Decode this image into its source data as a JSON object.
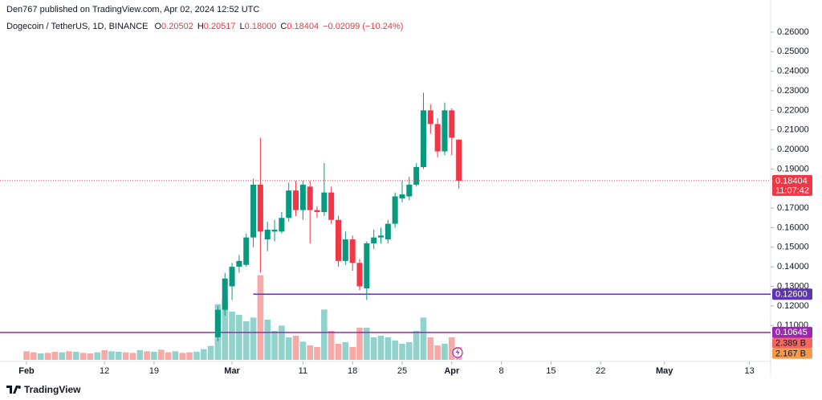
{
  "header": {
    "published": "Den767 published on TradingView.com, Apr 02, 2024 12:52 UTC"
  },
  "footer": {
    "brand": "TradingView"
  },
  "chart_data": {
    "type": "candlestick",
    "title": "Dogecoin / TetherUS, 1D, BINANCE",
    "ohlc_legend": [
      {
        "key": "O",
        "value": "0.20502"
      },
      {
        "key": "H",
        "value": "0.20517"
      },
      {
        "key": "L",
        "value": "0.18000"
      },
      {
        "key": "C",
        "value": "0.18404"
      }
    ],
    "change": "−0.02099 (−10.24%)",
    "up_color": "#089981",
    "down_color": "#f23645",
    "x": [
      "Feb 28",
      "Feb 29",
      "Mar 1",
      "Mar 2",
      "Mar 3",
      "Mar 4",
      "Mar 5",
      "Mar 6",
      "Mar 7",
      "Mar 8",
      "Mar 9",
      "Mar 10",
      "Mar 11",
      "Mar 12",
      "Mar 13",
      "Mar 14",
      "Mar 15",
      "Mar 16",
      "Mar 17",
      "Mar 18",
      "Mar 19",
      "Mar 20",
      "Mar 21",
      "Mar 22",
      "Mar 23",
      "Mar 24",
      "Mar 25",
      "Mar 26",
      "Mar 27",
      "Mar 28",
      "Mar 29",
      "Mar 30",
      "Mar 31",
      "Apr 1",
      "Apr 2"
    ],
    "open": [
      0.104,
      0.118,
      0.13,
      0.14,
      0.141,
      0.155,
      0.182,
      0.154,
      0.158,
      0.158,
      0.165,
      0.179,
      0.169,
      0.181,
      0.169,
      0.168,
      0.178,
      0.164,
      0.143,
      0.154,
      0.142,
      0.129,
      0.152,
      0.155,
      0.154,
      0.162,
      0.175,
      0.176,
      0.182,
      0.191,
      0.22,
      0.213,
      0.199,
      0.22,
      0.20502
    ],
    "high": [
      0.12,
      0.137,
      0.142,
      0.146,
      0.157,
      0.185,
      0.206,
      0.163,
      0.164,
      0.168,
      0.183,
      0.184,
      0.184,
      0.184,
      0.171,
      0.193,
      0.181,
      0.166,
      0.158,
      0.156,
      0.144,
      0.153,
      0.159,
      0.16,
      0.164,
      0.178,
      0.184,
      0.186,
      0.193,
      0.229,
      0.223,
      0.216,
      0.224,
      0.221,
      0.20517
    ],
    "low": [
      0.102,
      0.115,
      0.123,
      0.137,
      0.14,
      0.15,
      0.137,
      0.148,
      0.153,
      0.157,
      0.163,
      0.166,
      0.164,
      0.152,
      0.165,
      0.166,
      0.162,
      0.14,
      0.141,
      0.138,
      0.128,
      0.123,
      0.149,
      0.152,
      0.152,
      0.16,
      0.173,
      0.174,
      0.181,
      0.19,
      0.208,
      0.196,
      0.197,
      0.197,
      0.18
    ],
    "close": [
      0.118,
      0.134,
      0.14,
      0.143,
      0.155,
      0.182,
      0.158,
      0.159,
      0.159,
      0.165,
      0.179,
      0.169,
      0.182,
      0.169,
      0.168,
      0.178,
      0.164,
      0.143,
      0.154,
      0.142,
      0.13,
      0.152,
      0.155,
      0.156,
      0.162,
      0.176,
      0.177,
      0.182,
      0.191,
      0.22,
      0.213,
      0.199,
      0.22,
      0.206,
      0.18404
    ],
    "ylim": [
      0.0916,
      0.2641
    ],
    "yticks": [
      {
        "value": 0.11,
        "label": "0.11000"
      },
      {
        "value": 0.12,
        "label": "0.12000"
      },
      {
        "value": 0.13,
        "label": "0.13000"
      },
      {
        "value": 0.14,
        "label": "0.14000"
      },
      {
        "value": 0.15,
        "label": "0.15000"
      },
      {
        "value": 0.16,
        "label": "0.16000"
      },
      {
        "value": 0.17,
        "label": "0.17000"
      },
      {
        "value": 0.19,
        "label": "0.19000"
      },
      {
        "value": 0.2,
        "label": "0.20000"
      },
      {
        "value": 0.21,
        "label": "0.21000"
      },
      {
        "value": 0.22,
        "label": "0.22000"
      },
      {
        "value": 0.23,
        "label": "0.23000"
      },
      {
        "value": 0.24,
        "label": "0.24000"
      },
      {
        "value": 0.25,
        "label": "0.25000"
      },
      {
        "value": 0.26,
        "label": "0.26000"
      }
    ],
    "xticks": [
      {
        "value": "Feb 1",
        "label": "Feb"
      },
      {
        "value": "Feb 12",
        "label": "12"
      },
      {
        "value": "Feb 19",
        "label": "19"
      },
      {
        "value": "Mar 1",
        "label": "Mar"
      },
      {
        "value": "Mar 11",
        "label": "11"
      },
      {
        "value": "Mar 18",
        "label": "18"
      },
      {
        "value": "Mar 25",
        "label": "25"
      },
      {
        "value": "Apr 1",
        "label": "Apr"
      },
      {
        "value": "Apr 8",
        "label": "8"
      },
      {
        "value": "Apr 15",
        "label": "15"
      },
      {
        "value": "Apr 22",
        "label": "22"
      },
      {
        "value": "May 1",
        "label": "May"
      },
      {
        "value": "May 13",
        "label": "13"
      }
    ],
    "grid": false,
    "last_price": {
      "value": 0.18404,
      "label": "0.18404",
      "countdown": "11:07:42",
      "color": "#f23645"
    },
    "price_lines": [
      {
        "value": 0.126,
        "label": "0.12600",
        "start": "Mar 4",
        "color": "#5e35b1"
      },
      {
        "value": 0.10645,
        "label": "0.10645",
        "color": "#9c27b0"
      }
    ],
    "volume": {
      "x": [
        "Feb 1",
        "Feb 2",
        "Feb 3",
        "Feb 4",
        "Feb 5",
        "Feb 6",
        "Feb 7",
        "Feb 8",
        "Feb 9",
        "Feb 10",
        "Feb 11",
        "Feb 12",
        "Feb 13",
        "Feb 14",
        "Feb 15",
        "Feb 16",
        "Feb 17",
        "Feb 18",
        "Feb 19",
        "Feb 20",
        "Feb 21",
        "Feb 22",
        "Feb 23",
        "Feb 24",
        "Feb 25",
        "Feb 26",
        "Feb 27",
        "Feb 28",
        "Feb 29",
        "Mar 1",
        "Mar 2",
        "Mar 3",
        "Mar 4",
        "Mar 5",
        "Mar 6",
        "Mar 7",
        "Mar 8",
        "Mar 9",
        "Mar 10",
        "Mar 11",
        "Mar 12",
        "Mar 13",
        "Mar 14",
        "Mar 15",
        "Mar 16",
        "Mar 17",
        "Mar 18",
        "Mar 19",
        "Mar 20",
        "Mar 21",
        "Mar 22",
        "Mar 23",
        "Mar 24",
        "Mar 25",
        "Mar 26",
        "Mar 27",
        "Mar 28",
        "Mar 29",
        "Mar 30",
        "Mar 31",
        "Apr 1",
        "Apr 2"
      ],
      "values": [
        1.6,
        1.4,
        1.2,
        1.3,
        1.5,
        1.4,
        1.6,
        1.5,
        1.3,
        1.2,
        1.4,
        1.8,
        1.6,
        1.5,
        1.4,
        1.3,
        1.8,
        1.6,
        1.5,
        1.9,
        1.4,
        1.6,
        1.3,
        1.4,
        1.5,
        2.0,
        2.6,
        10.4,
        11.3,
        9.0,
        8.4,
        7.2,
        7.9,
        15.8,
        7.5,
        5.4,
        6.4,
        4.2,
        4.5,
        3.4,
        2.7,
        2.4,
        9.4,
        5.4,
        3.0,
        3.3,
        2.4,
        6.0,
        6.0,
        4.2,
        4.5,
        4.2,
        3.6,
        3.0,
        3.3,
        5.4,
        7.9,
        4.2,
        2.7,
        3.0,
        4.2,
        2.389
      ],
      "colors": [
        "#f7a9a7",
        "#f7a9a7",
        "#92d2cc",
        "#f7a9a7",
        "#f7a9a7",
        "#92d2cc",
        "#f7a9a7",
        "#92d2cc",
        "#f7a9a7",
        "#f7a9a7",
        "#92d2cc",
        "#f7a9a7",
        "#92d2cc",
        "#92d2cc",
        "#f7a9a7",
        "#f7a9a7",
        "#92d2cc",
        "#f7a9a7",
        "#92d2cc",
        "#f7a9a7",
        "#f7a9a7",
        "#92d2cc",
        "#f7a9a7",
        "#f7a9a7",
        "#92d2cc",
        "#92d2cc",
        "#92d2cc",
        "#92d2cc",
        "#92d2cc",
        "#92d2cc",
        "#92d2cc",
        "#92d2cc",
        "#92d2cc",
        "#f7a9a7",
        "#92d2cc",
        "#92d2cc",
        "#92d2cc",
        "#92d2cc",
        "#f7a9a7",
        "#92d2cc",
        "#f7a9a7",
        "#f7a9a7",
        "#92d2cc",
        "#f7a9a7",
        "#f7a9a7",
        "#92d2cc",
        "#f7a9a7",
        "#f7a9a7",
        "#92d2cc",
        "#92d2cc",
        "#92d2cc",
        "#92d2cc",
        "#92d2cc",
        "#92d2cc",
        "#92d2cc",
        "#92d2cc",
        "#92d2cc",
        "#f7a9a7",
        "#f7a9a7",
        "#92d2cc",
        "#f7a9a7",
        "#f7a9a7"
      ],
      "ylim": [
        0,
        63
      ],
      "labels": [
        {
          "value": 2.389,
          "label": "2.389 B",
          "color": "#f7665e"
        },
        {
          "value": 2.167,
          "label": "2.167 B",
          "color": "#f59a4c"
        }
      ]
    }
  }
}
